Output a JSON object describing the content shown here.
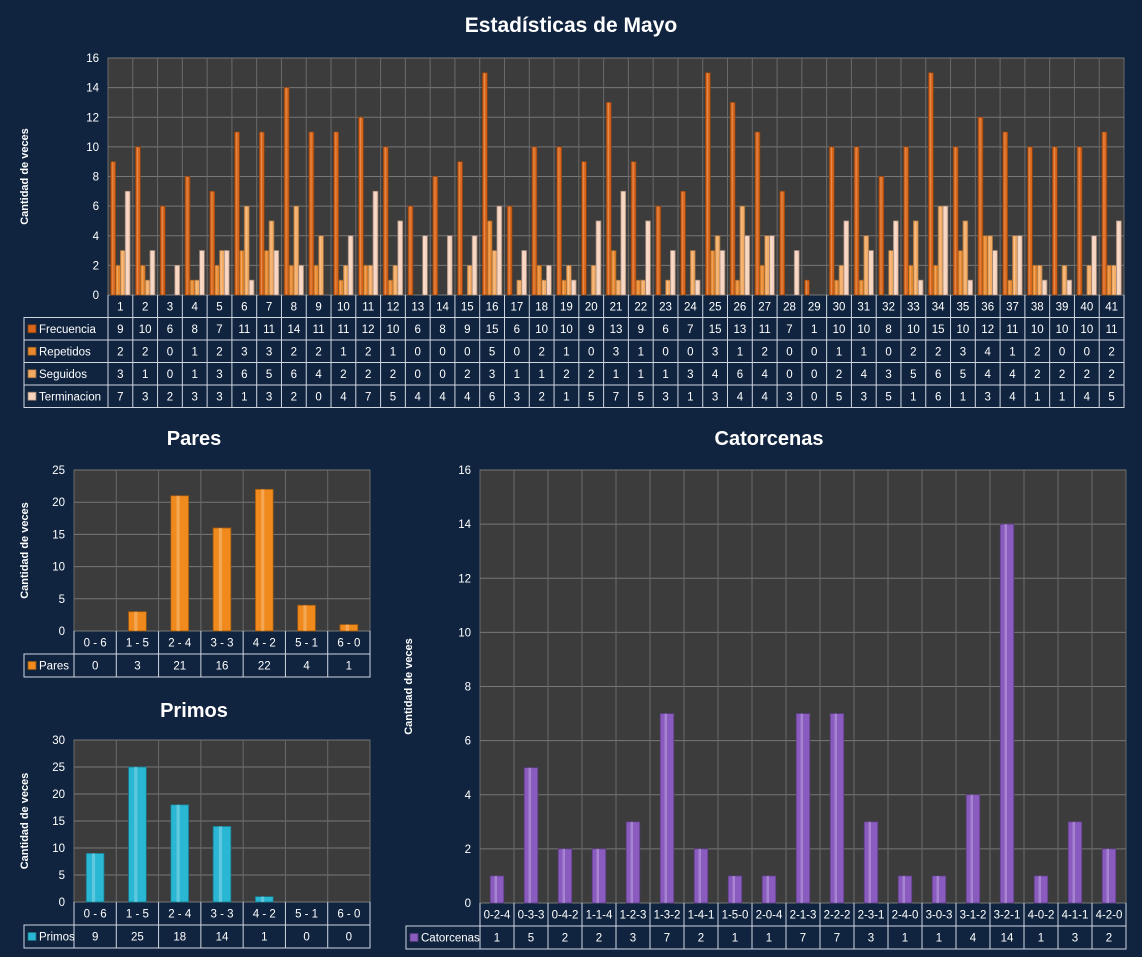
{
  "chart_data": [
    {
      "type": "bar",
      "title": "Estadísticas de Mayo",
      "ylabel": "Cantidad de veces",
      "ylim": [
        0,
        16
      ],
      "yticks": [
        0,
        2,
        4,
        6,
        8,
        10,
        12,
        14,
        16
      ],
      "categories": [
        "1",
        "2",
        "3",
        "4",
        "5",
        "6",
        "7",
        "8",
        "9",
        "10",
        "11",
        "12",
        "13",
        "14",
        "15",
        "16",
        "17",
        "18",
        "19",
        "20",
        "21",
        "22",
        "23",
        "24",
        "25",
        "26",
        "27",
        "28",
        "29",
        "30",
        "31",
        "32",
        "33",
        "34",
        "35",
        "36",
        "37",
        "38",
        "39",
        "40",
        "41"
      ],
      "series": [
        {
          "name": "Frecuencia",
          "color": "#d9661a",
          "values": [
            9,
            10,
            6,
            8,
            7,
            11,
            11,
            14,
            11,
            11,
            12,
            10,
            6,
            8,
            9,
            15,
            6,
            10,
            10,
            9,
            13,
            9,
            6,
            7,
            15,
            13,
            11,
            7,
            1,
            10,
            10,
            8,
            10,
            15,
            10,
            12,
            11,
            10,
            10,
            10,
            11
          ]
        },
        {
          "name": "Repetidos",
          "color": "#e8892f",
          "values": [
            2,
            2,
            0,
            1,
            2,
            3,
            3,
            2,
            2,
            1,
            2,
            1,
            0,
            0,
            0,
            5,
            0,
            2,
            1,
            0,
            3,
            1,
            0,
            0,
            3,
            1,
            2,
            0,
            0,
            1,
            1,
            0,
            2,
            2,
            3,
            4,
            1,
            2,
            0,
            0,
            2
          ]
        },
        {
          "name": "Seguidos",
          "color": "#f3aa62",
          "values": [
            3,
            1,
            0,
            1,
            3,
            6,
            5,
            6,
            4,
            2,
            2,
            2,
            0,
            0,
            2,
            3,
            1,
            1,
            2,
            2,
            1,
            1,
            1,
            3,
            4,
            6,
            4,
            0,
            0,
            2,
            4,
            3,
            5,
            6,
            5,
            4,
            4,
            2,
            2,
            2,
            2
          ]
        },
        {
          "name": "Terminacion",
          "color": "#f7d2bd",
          "values": [
            7,
            3,
            2,
            3,
            3,
            1,
            3,
            2,
            0,
            4,
            7,
            5,
            4,
            4,
            4,
            6,
            3,
            2,
            1,
            5,
            7,
            5,
            3,
            1,
            3,
            4,
            4,
            3,
            0,
            5,
            3,
            5,
            1,
            6,
            1,
            3,
            4,
            1,
            1,
            4,
            5
          ]
        }
      ]
    },
    {
      "type": "bar",
      "title": "Pares",
      "ylabel": "Cantidad de veces",
      "ylim": [
        0,
        25
      ],
      "yticks": [
        0,
        5,
        10,
        15,
        20,
        25
      ],
      "categories": [
        "0 - 6",
        "1 - 5",
        "2 - 4",
        "3 - 3",
        "4 - 2",
        "5 - 1",
        "6 - 0"
      ],
      "series": [
        {
          "name": "Pares",
          "color": "#f08a1c",
          "values": [
            0,
            3,
            21,
            16,
            22,
            4,
            1
          ]
        }
      ]
    },
    {
      "type": "bar",
      "title": "Primos",
      "ylabel": "Cantidad de veces",
      "ylim": [
        0,
        30
      ],
      "yticks": [
        0,
        5,
        10,
        15,
        20,
        25,
        30
      ],
      "categories": [
        "0 - 6",
        "1 - 5",
        "2 - 4",
        "3 - 3",
        "4 - 2",
        "5 - 1",
        "6 - 0"
      ],
      "series": [
        {
          "name": "Primos",
          "color": "#2ab7d3",
          "values": [
            9,
            25,
            18,
            14,
            1,
            0,
            0
          ]
        }
      ]
    },
    {
      "type": "bar",
      "title": "Catorcenas",
      "ylabel": "Cantidad de veces",
      "ylim": [
        0,
        16
      ],
      "yticks": [
        0,
        2,
        4,
        6,
        8,
        10,
        12,
        14,
        16
      ],
      "categories": [
        "0-2-4",
        "0-3-3",
        "0-4-2",
        "1-1-4",
        "1-2-3",
        "1-3-2",
        "1-4-1",
        "1-5-0",
        "2-0-4",
        "2-1-3",
        "2-2-2",
        "2-3-1",
        "2-4-0",
        "3-0-3",
        "3-1-2",
        "3-2-1",
        "4-0-2",
        "4-1-1",
        "4-2-0"
      ],
      "series": [
        {
          "name": "Catorcenas",
          "color": "#8a5cc0",
          "values": [
            1,
            5,
            2,
            2,
            3,
            7,
            2,
            1,
            1,
            7,
            7,
            3,
            1,
            1,
            4,
            14,
            1,
            3,
            2
          ]
        }
      ]
    }
  ]
}
